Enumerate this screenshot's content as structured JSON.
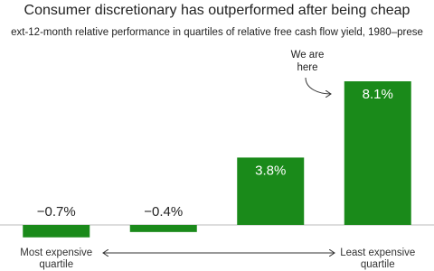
{
  "chart_data": {
    "type": "bar",
    "title": "Consumer discretionary has outperformed after being cheap",
    "subtitle": "ext-12-month relative performance in quartiles of relative free cash flow yield, 1980–prese",
    "annotation": "We are here",
    "categories": [
      "Most expensive quartile",
      null,
      null,
      "Least expensive quartile"
    ],
    "values": [
      -0.7,
      -0.4,
      3.8,
      8.1
    ],
    "value_labels": [
      "−0.7%",
      "−0.4%",
      "3.8%",
      "8.1%"
    ],
    "color": "#1a8a1a"
  }
}
